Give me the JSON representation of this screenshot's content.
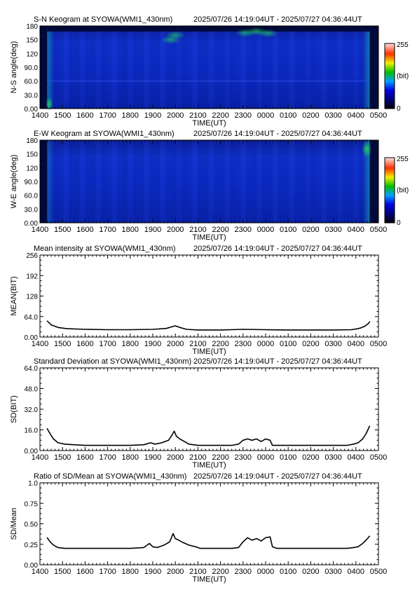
{
  "panels": [
    {
      "id": "sn-keogram",
      "title": "S-N Keogram at SYOWA(WMI1_430nm)",
      "time_range": "2025/07/26 14:19:04UT - 2025/07/27 04:36:44UT",
      "ylabel": "N-S angle(deg)",
      "xlabel": "TIME(UT)"
    },
    {
      "id": "ew-keogram",
      "title": "E-W Keogram at SYOWA(WMI1_430nm)",
      "time_range": "2025/07/26 14:19:04UT - 2025/07/27 04:36:44UT",
      "ylabel": "W-E angle(deg)",
      "xlabel": "TIME(UT)"
    },
    {
      "id": "mean-intensity",
      "title": "Mean intensity at SYOWA(WMI1_430nm)",
      "time_range": "2025/07/26 14:19:04UT - 2025/07/27 04:36:44UT",
      "ylabel": "MEAN(BIT)",
      "xlabel": "TIME(UT)"
    },
    {
      "id": "std-dev",
      "title": "Standard Deviation at SYOWA(WMI1_430nm)",
      "time_range": "2025/07/26 14:19:04UT - 2025/07/27 04:36:44UT",
      "ylabel": "SD(BIT)",
      "xlabel": "TIME(UT)"
    },
    {
      "id": "ratio",
      "title": "Ratio of SD/Mean at SYOWA(WMI1_430nm)",
      "time_range": "2025/07/26 14:19:04UT - 2025/07/27 04:36:44UT",
      "ylabel": "SD/Mean",
      "xlabel": "TIME(UT)"
    }
  ],
  "colorbar": {
    "max_label": "255",
    "unit_label": "(bit)",
    "min_label": "0"
  },
  "colors": {
    "keogram_bg": "#0a26c8",
    "keogram_dark": "#000a50",
    "line": "#000000"
  },
  "chart_data": [
    {
      "type": "heatmap",
      "title": "S-N Keogram at SYOWA(WMI1_430nm)",
      "xlabel": "TIME(UT)",
      "ylabel": "N-S angle(deg)",
      "x_ticks": [
        "1400",
        "1500",
        "1600",
        "1700",
        "1800",
        "1900",
        "2000",
        "2100",
        "2200",
        "2300",
        "0000",
        "0100",
        "0200",
        "0300",
        "0400",
        "0500"
      ],
      "y_ticks": [
        "0.00",
        "30.0",
        "60.0",
        "90.0",
        "120",
        "150",
        "180"
      ],
      "y_range": [
        0,
        180
      ],
      "color_scale": [
        0,
        255
      ],
      "data_range_hours": [
        14.32,
        28.61
      ],
      "notes": [
        "bright (green) patches near 2300-0000 UT at high angle",
        "edge brightening at start and end"
      ]
    },
    {
      "type": "heatmap",
      "title": "E-W Keogram at SYOWA(WMI1_430nm)",
      "xlabel": "TIME(UT)",
      "ylabel": "W-E angle(deg)",
      "x_ticks": [
        "1400",
        "1500",
        "1600",
        "1700",
        "1800",
        "1900",
        "2000",
        "2100",
        "2200",
        "2300",
        "0000",
        "0100",
        "0200",
        "0300",
        "0400",
        "0500"
      ],
      "y_ticks": [
        "0.00",
        "30.0",
        "60.0",
        "90.0",
        "120",
        "150",
        "180"
      ],
      "y_range": [
        0,
        180
      ],
      "color_scale": [
        0,
        255
      ],
      "data_range_hours": [
        14.32,
        28.61
      ],
      "notes": [
        "green brightening near 0400-0440 UT at high angle"
      ]
    },
    {
      "type": "line",
      "title": "Mean intensity at SYOWA(WMI1_430nm)",
      "xlabel": "TIME(UT)",
      "ylabel": "MEAN(BIT)",
      "x_ticks": [
        "1400",
        "1500",
        "1600",
        "1700",
        "1800",
        "1900",
        "2000",
        "2100",
        "2200",
        "2300",
        "0000",
        "0100",
        "0200",
        "0300",
        "0400",
        "0500"
      ],
      "y_ticks": [
        "0.00",
        "64.0",
        "128",
        "192",
        "256"
      ],
      "xlim": [
        14,
        29
      ],
      "ylim": [
        0,
        256
      ],
      "x": [
        14.32,
        14.5,
        14.8,
        15.2,
        16,
        17,
        18,
        19,
        19.6,
        19.9,
        20.0,
        20.2,
        20.5,
        21,
        22,
        23,
        24,
        25,
        26,
        27,
        27.8,
        28.0,
        28.2,
        28.4,
        28.55,
        28.61
      ],
      "y": [
        50,
        38,
        30,
        26,
        24,
        23,
        23,
        24,
        27,
        33,
        35,
        30,
        24,
        22,
        22,
        24,
        23,
        22,
        22,
        22,
        23,
        25,
        28,
        34,
        42,
        48
      ]
    },
    {
      "type": "line",
      "title": "Standard Deviation at SYOWA(WMI1_430nm)",
      "xlabel": "TIME(UT)",
      "ylabel": "SD(BIT)",
      "x_ticks": [
        "1400",
        "1500",
        "1600",
        "1700",
        "1800",
        "1900",
        "2000",
        "2100",
        "2200",
        "2300",
        "0000",
        "0100",
        "0200",
        "0300",
        "0400",
        "0500"
      ],
      "y_ticks": [
        "0.00",
        "16.0",
        "32.0",
        "48.0",
        "64.0"
      ],
      "xlim": [
        14,
        29
      ],
      "ylim": [
        0,
        64
      ],
      "x": [
        14.32,
        14.45,
        14.6,
        14.8,
        15.1,
        15.5,
        16,
        17,
        18,
        18.6,
        18.9,
        19.1,
        19.4,
        19.7,
        19.85,
        19.95,
        20.05,
        20.2,
        20.4,
        20.6,
        20.8,
        21.0,
        21.5,
        22,
        22.5,
        22.8,
        23.0,
        23.2,
        23.4,
        23.6,
        23.8,
        24.0,
        24.2,
        24.3,
        24.5,
        25,
        26,
        27,
        27.6,
        27.9,
        28.1,
        28.3,
        28.45,
        28.61
      ],
      "y": [
        17,
        13,
        9,
        6,
        5,
        4.5,
        4,
        4,
        4,
        4.5,
        6,
        5,
        6,
        8,
        12,
        15,
        11,
        9,
        7,
        5,
        4.5,
        4,
        4,
        4,
        4,
        5,
        8,
        9,
        8,
        9,
        7,
        9,
        8,
        4,
        4,
        4,
        4,
        4,
        4,
        5,
        6,
        9,
        13,
        19
      ]
    },
    {
      "type": "line",
      "title": "Ratio of SD/Mean at SYOWA(WMI1_430nm)",
      "xlabel": "TIME(UT)",
      "ylabel": "SD/Mean",
      "x_ticks": [
        "1400",
        "1500",
        "1600",
        "1700",
        "1800",
        "1900",
        "2000",
        "2100",
        "2200",
        "2300",
        "0000",
        "0100",
        "0200",
        "0300",
        "0400",
        "0500"
      ],
      "y_ticks": [
        "0.00",
        "0.25",
        "0.50",
        "0.75",
        "1.0"
      ],
      "xlim": [
        14,
        29
      ],
      "ylim": [
        0,
        1.0
      ],
      "x": [
        14.32,
        14.45,
        14.6,
        14.8,
        15.1,
        15.5,
        16,
        17,
        18,
        18.6,
        18.85,
        19.0,
        19.2,
        19.5,
        19.75,
        19.9,
        20.0,
        20.15,
        20.35,
        20.6,
        20.9,
        21.1,
        21.5,
        22,
        22.5,
        22.8,
        23.0,
        23.2,
        23.4,
        23.6,
        23.8,
        24.0,
        24.2,
        24.3,
        24.5,
        25,
        26,
        27,
        27.6,
        27.9,
        28.1,
        28.3,
        28.45,
        28.61
      ],
      "y": [
        0.33,
        0.28,
        0.24,
        0.21,
        0.2,
        0.2,
        0.2,
        0.2,
        0.2,
        0.21,
        0.26,
        0.22,
        0.21,
        0.24,
        0.28,
        0.38,
        0.32,
        0.3,
        0.27,
        0.24,
        0.22,
        0.2,
        0.2,
        0.2,
        0.2,
        0.21,
        0.28,
        0.33,
        0.3,
        0.32,
        0.29,
        0.33,
        0.34,
        0.22,
        0.2,
        0.2,
        0.2,
        0.2,
        0.2,
        0.21,
        0.22,
        0.26,
        0.3,
        0.35
      ]
    }
  ]
}
